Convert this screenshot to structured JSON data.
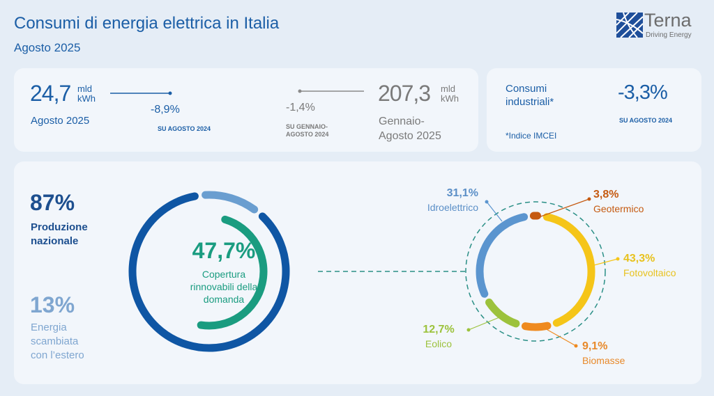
{
  "header": {
    "title": "Consumi di energia elettrica in Italia",
    "subtitle": "Agosto 2025"
  },
  "logo": {
    "name": "Terna",
    "tagline": "Driving Energy",
    "icon": "terna-grid-logo"
  },
  "monthly": {
    "value": "24,7",
    "unit_line1": "mld",
    "unit_line2": "kWh",
    "period": "Agosto 2025",
    "change": "-8,9%",
    "change_ref": "SU AGOSTO 2024"
  },
  "ytd": {
    "value": "207,3",
    "unit_line1": "mld",
    "unit_line2": "kWh",
    "period_line1": "Gennaio-",
    "period_line2": "Agosto 2025",
    "change": "-1,4%",
    "change_ref_line1": "SU GENNAIO-",
    "change_ref_line2": "AGOSTO 2024"
  },
  "industrial": {
    "label_line1": "Consumi",
    "label_line2": "industriali*",
    "value": "-3,3%",
    "ref": "SU AGOSTO 2024",
    "note": "*Indice IMCEI"
  },
  "supply": {
    "national": {
      "value": "87%",
      "label_line1": "Produzione",
      "label_line2": "nazionale"
    },
    "abroad": {
      "value": "13%",
      "label_line1": "Energia",
      "label_line2": "scambiata",
      "label_line3": "con l’estero"
    },
    "renewables": {
      "value": "47,7%",
      "label_line1": "Copertura",
      "label_line2": "rinnovabili della",
      "label_line3": "domanda"
    }
  },
  "colors": {
    "title": "#1b5ea6",
    "dark_blue": "#0f56a4",
    "light_blue": "#6a9ed0",
    "teal": "#1a9c80",
    "gray": "#7a7a7a"
  },
  "chart_data": [
    {
      "type": "pie",
      "variant": "donut",
      "series": [
        {
          "name": "Produzione nazionale",
          "value": 87,
          "color": "#0f56a4"
        },
        {
          "name": "Energia scambiata con l'estero",
          "value": 13,
          "color": "#6a9ed0"
        }
      ],
      "inner_arc": {
        "label": "Copertura rinnovabili della domanda",
        "value": 47.7,
        "color": "#1a9c80"
      }
    },
    {
      "type": "pie",
      "variant": "donut",
      "categories": [
        "Geotermico",
        "Fotovoltaico",
        "Biomasse",
        "Eolico",
        "Idroelettrico"
      ],
      "values": [
        3.8,
        43.3,
        9.1,
        12.7,
        31.1
      ],
      "labels": [
        "3,8%",
        "43,3%",
        "9,1%",
        "12,7%",
        "31,1%"
      ],
      "colors": [
        "#c55a11",
        "#f5c518",
        "#ef8a1f",
        "#9cc23c",
        "#5b95cf"
      ]
    }
  ]
}
